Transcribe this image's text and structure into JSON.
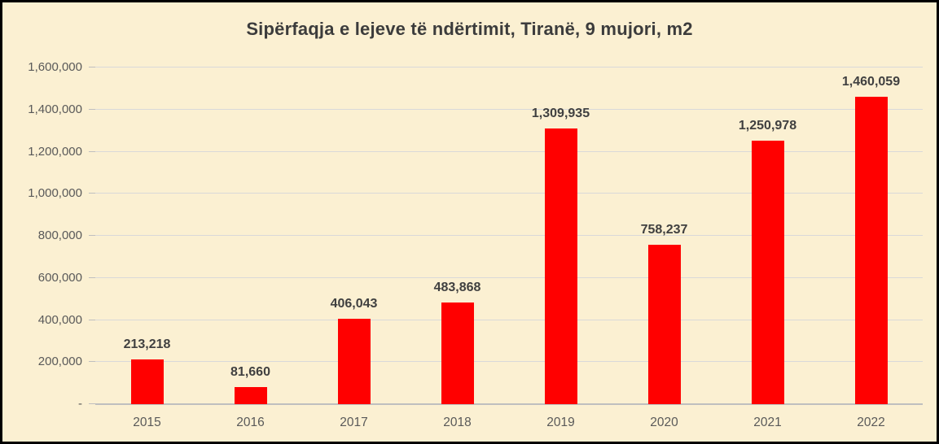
{
  "chart_data": {
    "type": "bar",
    "title": "Sipërfaqja e lejeve të ndërtimit, Tiranë, 9 mujori, m2",
    "categories": [
      "2015",
      "2016",
      "2017",
      "2018",
      "2019",
      "2020",
      "2021",
      "2022"
    ],
    "values": [
      213218,
      81660,
      406043,
      483868,
      1309935,
      758237,
      1250978,
      1460059
    ],
    "data_labels": [
      "213,218",
      "81,660",
      "406,043",
      "483,868",
      "1,309,935",
      "758,237",
      "1,250,978",
      "1,460,059"
    ],
    "xlabel": "",
    "ylabel": "",
    "ylim": [
      0,
      1600000
    ],
    "y_tick_step": 200000,
    "y_tick_labels": [
      "-",
      "200,000",
      "400,000",
      "600,000",
      "800,000",
      "1,000,000",
      "1,200,000",
      "1,400,000",
      "1,600,000"
    ],
    "grid": true,
    "legend": false,
    "colors": {
      "bar": "#FF0000",
      "background": "#FBF0D2",
      "gridline": "#D9D9D9",
      "axis_line": "#BFBFBF",
      "title_text": "#3C3C3C",
      "data_label_text": "#404040",
      "tick_label_text": "#595959",
      "frame_border": "#000000"
    }
  }
}
